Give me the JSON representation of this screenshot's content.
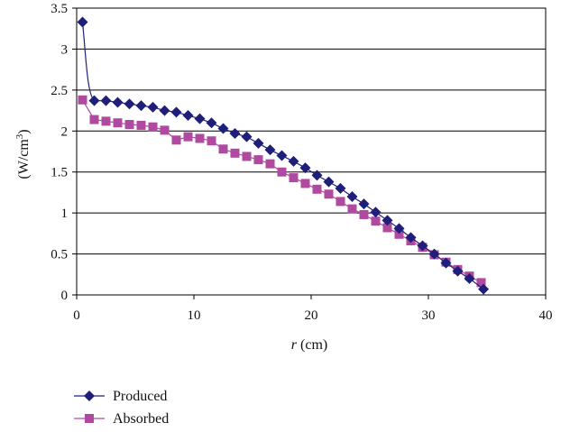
{
  "chart_data": {
    "type": "line",
    "xlim": [
      0,
      40
    ],
    "ylim": [
      0,
      3.5
    ],
    "x_ticks": [
      "0",
      "10",
      "20",
      "30",
      "40"
    ],
    "y_ticks": [
      "0",
      "0.5",
      "1",
      "1.5",
      "2",
      "2.5",
      "3",
      "3.5"
    ],
    "xlabel_italic": "r",
    "xlabel_rest": " (cm)",
    "ylabel_main": "(W/cm",
    "ylabel_sup": "3",
    "ylabel_close": ")",
    "grid": "horizontal",
    "legend_position": "bottom-left",
    "series": [
      {
        "name": "Produced",
        "color": "#1f1f7a",
        "marker": "diamond",
        "x": [
          0.5,
          1.5,
          2.5,
          3.5,
          4.5,
          5.5,
          6.5,
          7.5,
          8.5,
          9.5,
          10.5,
          11.5,
          12.5,
          13.5,
          14.5,
          15.5,
          16.5,
          17.5,
          18.5,
          19.5,
          20.5,
          21.5,
          22.5,
          23.5,
          24.5,
          25.5,
          26.5,
          27.5,
          28.5,
          29.5,
          30.5,
          31.5,
          32.5,
          33.5,
          34.7
        ],
        "y": [
          3.33,
          2.37,
          2.37,
          2.35,
          2.33,
          2.31,
          2.29,
          2.25,
          2.23,
          2.19,
          2.15,
          2.1,
          2.03,
          1.97,
          1.93,
          1.85,
          1.77,
          1.7,
          1.63,
          1.55,
          1.46,
          1.38,
          1.3,
          1.2,
          1.11,
          1.01,
          0.91,
          0.81,
          0.7,
          0.6,
          0.5,
          0.39,
          0.29,
          0.2,
          0.07
        ]
      },
      {
        "name": "Absorbed",
        "color": "#b04aa0",
        "marker": "square",
        "x": [
          0.5,
          1.5,
          2.5,
          3.5,
          4.5,
          5.5,
          6.5,
          7.5,
          8.5,
          9.5,
          10.5,
          11.5,
          12.5,
          13.5,
          14.5,
          15.5,
          16.5,
          17.5,
          18.5,
          19.5,
          20.5,
          21.5,
          22.5,
          23.5,
          24.5,
          25.5,
          26.5,
          27.5,
          28.5,
          29.5,
          30.5,
          31.5,
          32.5,
          33.5,
          34.5
        ],
        "y": [
          2.38,
          2.14,
          2.12,
          2.1,
          2.08,
          2.07,
          2.05,
          2.01,
          1.89,
          1.93,
          1.91,
          1.88,
          1.78,
          1.73,
          1.69,
          1.65,
          1.6,
          1.5,
          1.43,
          1.36,
          1.29,
          1.23,
          1.14,
          1.05,
          0.98,
          0.9,
          0.82,
          0.74,
          0.66,
          0.58,
          0.49,
          0.4,
          0.31,
          0.23,
          0.15
        ]
      }
    ]
  }
}
